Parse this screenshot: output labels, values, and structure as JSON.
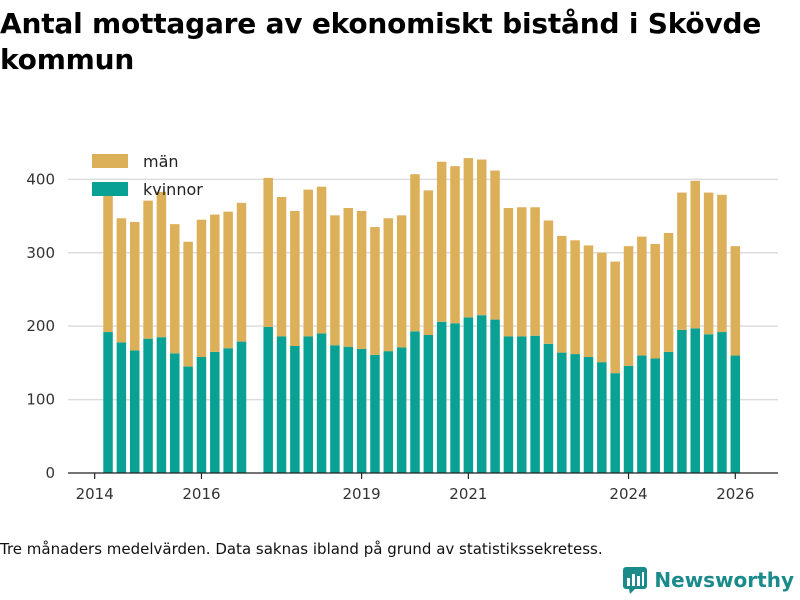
{
  "chart_title": "Antal mottagare av ekonomiskt bistånd i Skövde kommun",
  "footnote": "Tre månaders medelvärden. Data saknas ibland på grund av statistikssekretess.",
  "brand": {
    "name": "Newsworthy",
    "icon": "newsworthy-logo-icon",
    "color": "#1a8a8a"
  },
  "colors": {
    "man": "#dcaf59",
    "kvinnor": "#0aa195",
    "grid": "#dddddd",
    "axis": "#222222"
  },
  "chart_data": {
    "type": "bar",
    "stacked": true,
    "title": "Antal mottagare av ekonomiskt bistånd i Skövde kommun",
    "xlabel": "",
    "ylabel": "",
    "ylim": [
      0,
      440
    ],
    "yticks": [
      0,
      100,
      200,
      300,
      400
    ],
    "xlim": [
      2013.5,
      2026.8
    ],
    "xticks": [
      2014,
      2016,
      2019,
      2021,
      2024,
      2026
    ],
    "grid": "horizontal",
    "legend": {
      "position": "top-left",
      "order": [
        "män",
        "kvinnor"
      ]
    },
    "x": [
      2014.25,
      2014.5,
      2014.75,
      2015.0,
      2015.25,
      2015.5,
      2015.75,
      2016.0,
      2016.25,
      2016.5,
      2016.75,
      2017.25,
      2017.5,
      2017.75,
      2018.0,
      2018.25,
      2018.5,
      2018.75,
      2019.0,
      2019.25,
      2019.5,
      2019.75,
      2020.0,
      2020.25,
      2020.5,
      2020.75,
      2021.0,
      2021.25,
      2021.5,
      2021.75,
      2022.0,
      2022.25,
      2022.5,
      2022.75,
      2023.0,
      2023.25,
      2023.5,
      2023.75,
      2024.0,
      2024.25,
      2024.5,
      2024.75,
      2025.0,
      2025.25,
      2025.5,
      2025.75,
      2026.0
    ],
    "series": [
      {
        "name": "kvinnor",
        "values": [
          192,
          178,
          167,
          183,
          185,
          163,
          145,
          158,
          165,
          170,
          179,
          199,
          186,
          173,
          186,
          190,
          174,
          172,
          169,
          161,
          166,
          171,
          193,
          188,
          206,
          204,
          212,
          215,
          209,
          186,
          186,
          187,
          176,
          164,
          162,
          158,
          151,
          136,
          146,
          160,
          156,
          165,
          195,
          197,
          189,
          192,
          160
        ]
      },
      {
        "name": "män",
        "values": [
          190,
          169,
          175,
          188,
          198,
          176,
          170,
          187,
          187,
          186,
          189,
          203,
          190,
          184,
          200,
          200,
          177,
          189,
          188,
          174,
          181,
          180,
          214,
          197,
          218,
          214,
          217,
          212,
          203,
          175,
          176,
          175,
          168,
          159,
          155,
          152,
          149,
          152,
          163,
          162,
          156,
          162,
          187,
          201,
          193,
          187,
          149
        ]
      }
    ]
  }
}
